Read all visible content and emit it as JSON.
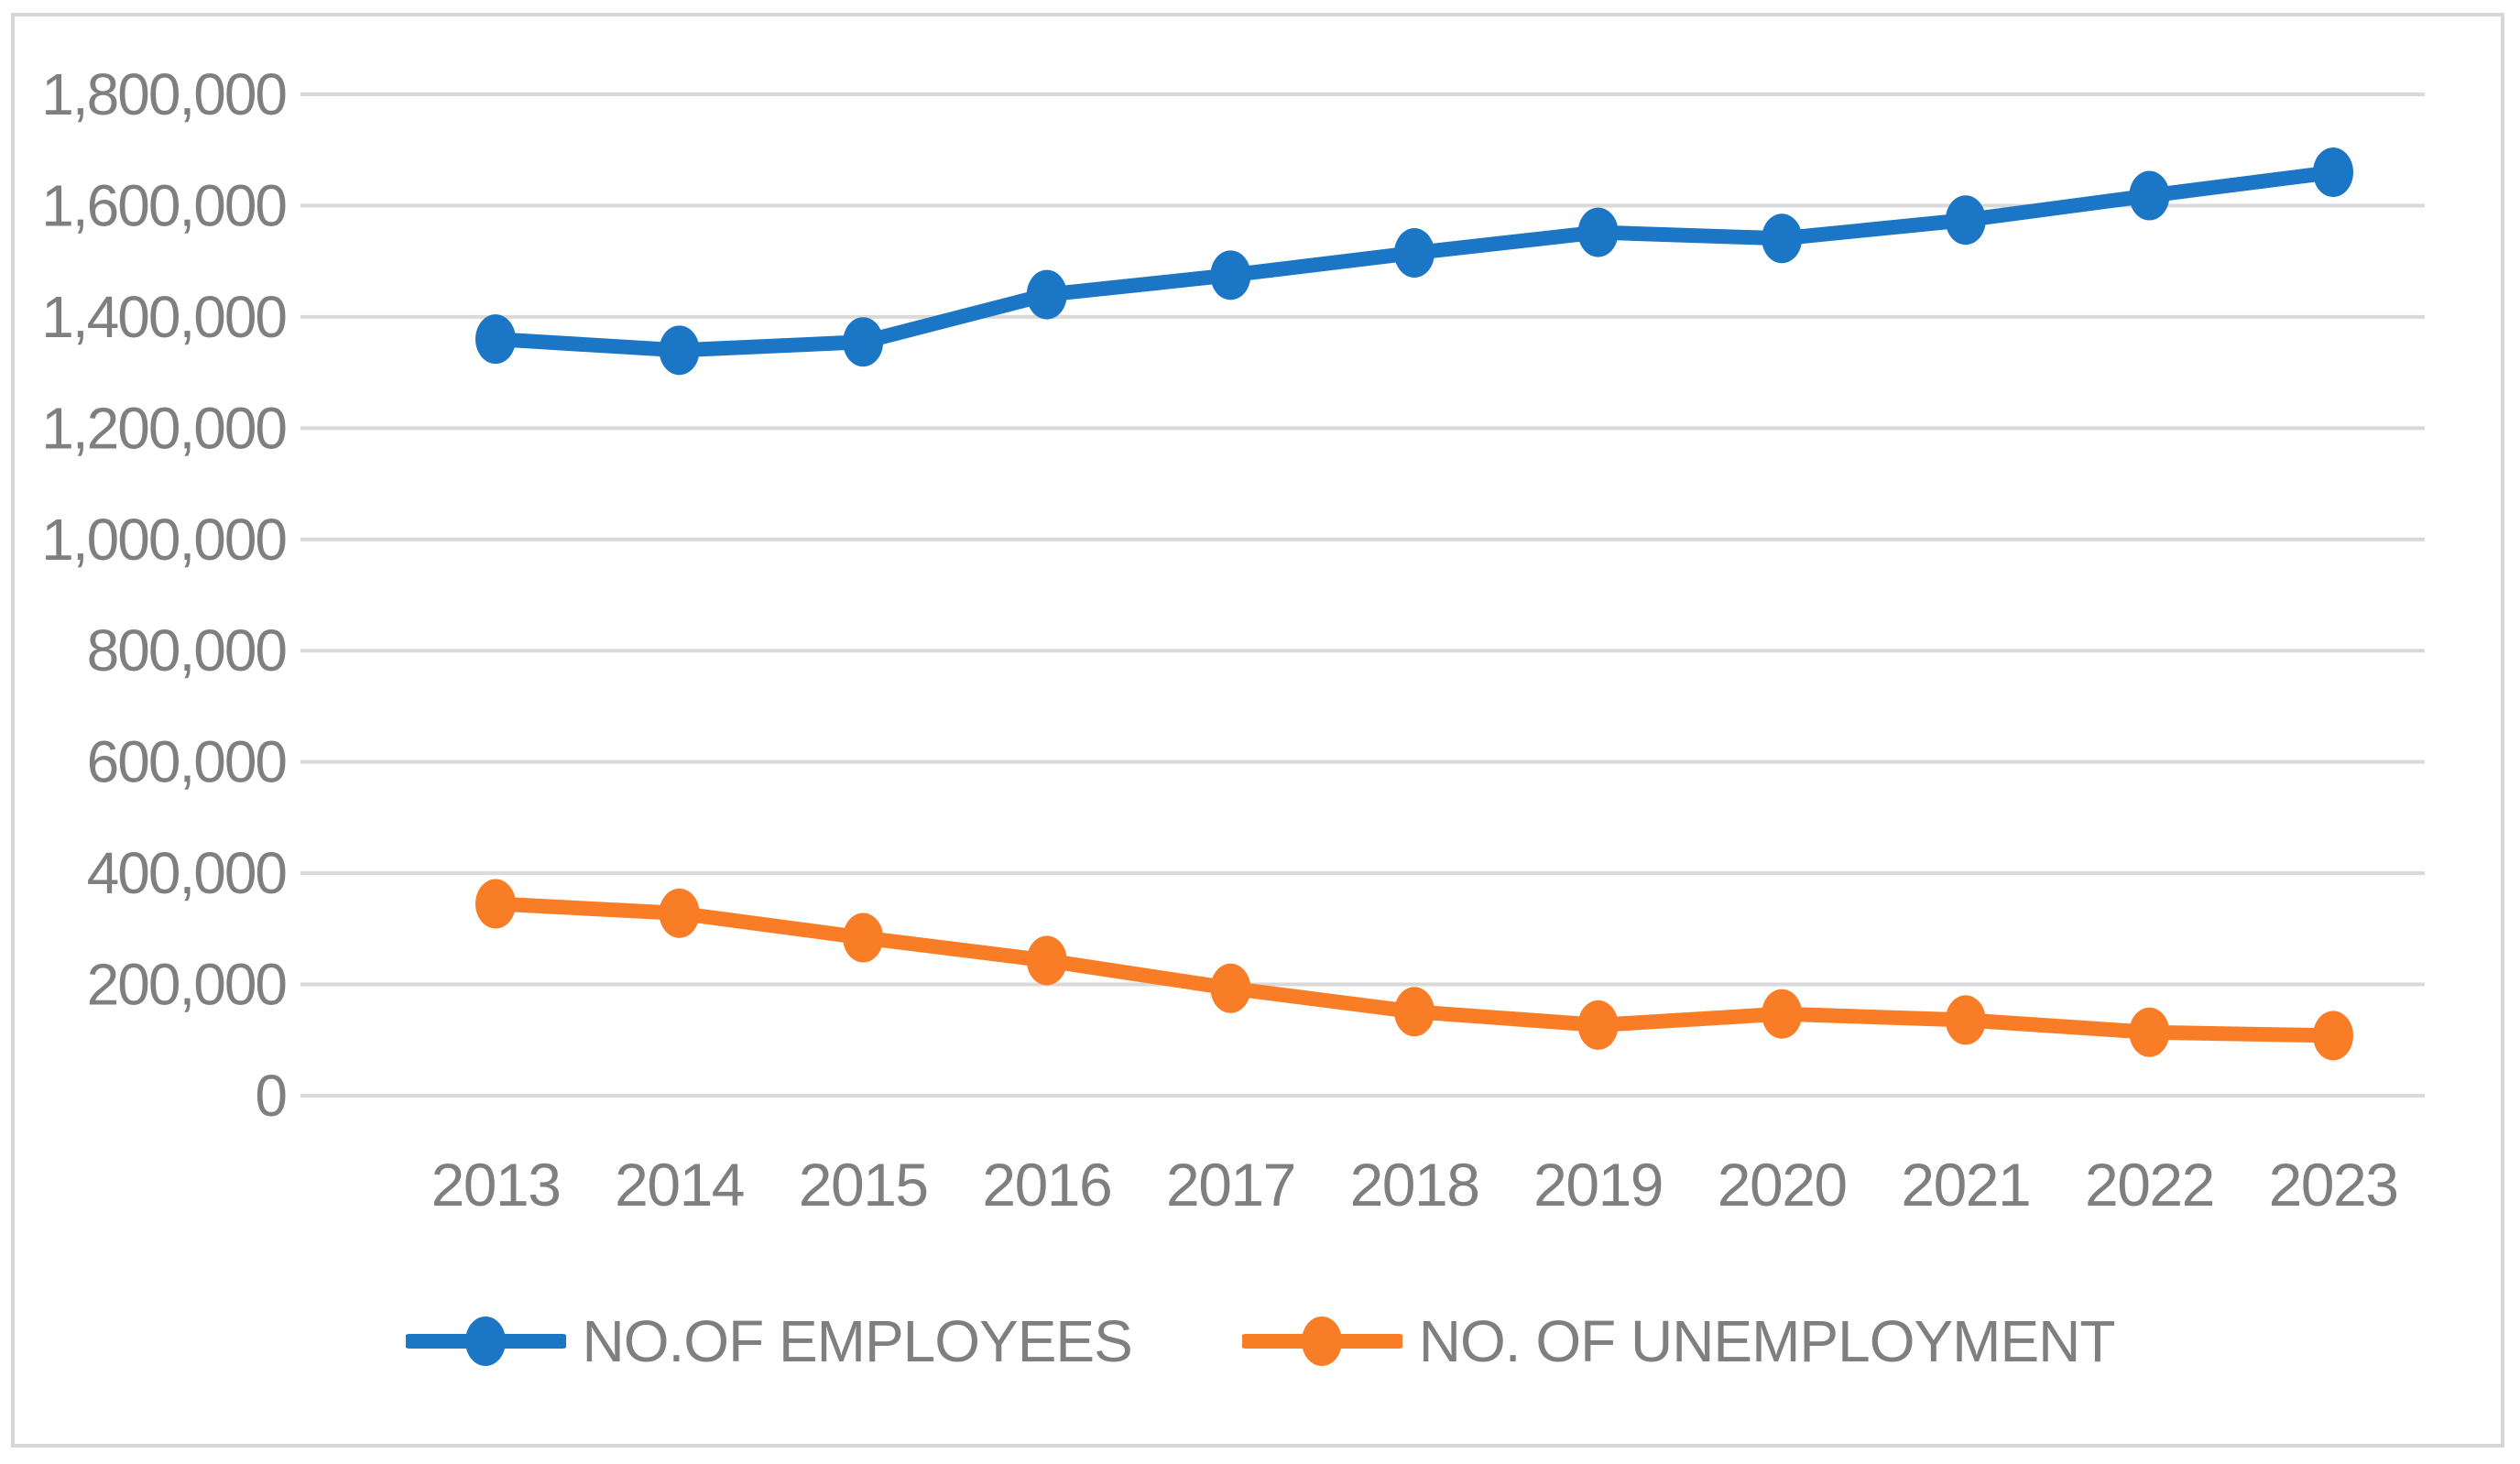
{
  "chart_data": {
    "type": "line",
    "title": "",
    "xlabel": "",
    "ylabel": "",
    "categories": [
      "2013",
      "2014",
      "2015",
      "2016",
      "2017",
      "2018",
      "2019",
      "2020",
      "2021",
      "2022",
      "2023"
    ],
    "series": [
      {
        "name": "NO.OF EMPLOYEES",
        "color": "#1b76c6",
        "values": [
          1360000,
          1340000,
          1355000,
          1440000,
          1475000,
          1515000,
          1552000,
          1541000,
          1574000,
          1618000,
          1660000
        ]
      },
      {
        "name": "NO. OF UNEMPLOYMENT",
        "color": "#f87d26",
        "values": [
          345000,
          328000,
          284000,
          243000,
          193000,
          151000,
          127000,
          147000,
          136000,
          114000,
          108000
        ]
      }
    ],
    "ylim": [
      0,
      1800000
    ],
    "ytick_step": 200000,
    "ytick_labels": [
      "0",
      "200,000",
      "400,000",
      "600,000",
      "800,000",
      "1,000,000",
      "1,200,000",
      "1,400,000",
      "1,600,000",
      "1,800,000"
    ],
    "grid": true,
    "legend_position": "bottom",
    "marker": "circle",
    "gridline_color": "#d9d9d9",
    "tick_label_color": "#7f7f7f",
    "frame_border_color": "#d6d6d6",
    "background_color": "#ffffff"
  }
}
